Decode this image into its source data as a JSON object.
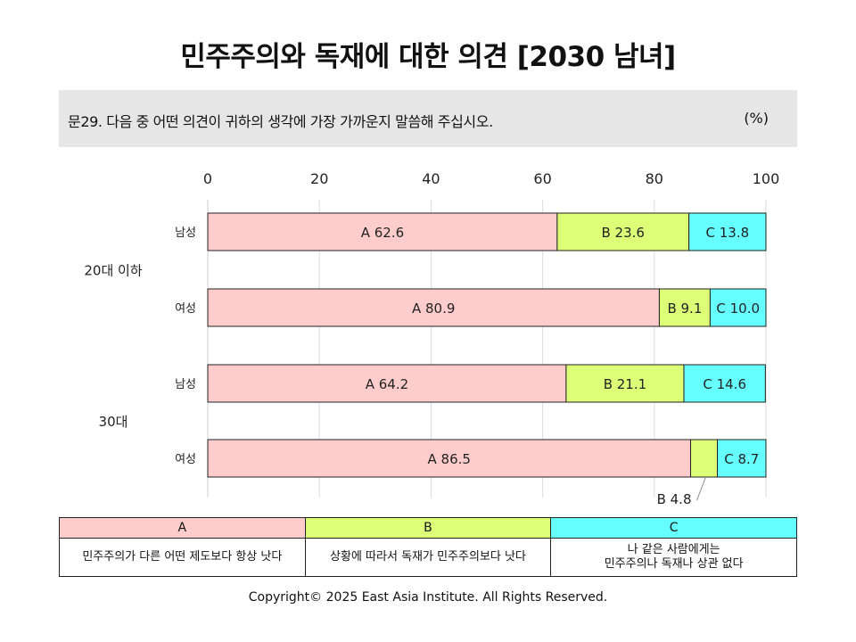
{
  "title": "민주주의와 독재에 대한 의견 [2030 남녀]",
  "question": {
    "text": "문29. 다음 중 어떤 의견이 귀하의 생각에 가장 가까운지 말씀해 주십시오.",
    "unit": "(%)"
  },
  "chart_data": {
    "type": "bar",
    "orientation": "horizontal",
    "stacked": true,
    "x_ticks": [
      "0",
      "20",
      "40",
      "60",
      "80",
      "100"
    ],
    "xlim": [
      0,
      100
    ],
    "grid": true,
    "groups": [
      {
        "label": "20대 이하",
        "rows": [
          {
            "label": "남성",
            "values": [
              62.6,
              23.6,
              13.8
            ],
            "labels": [
              "A 62.6",
              "B 23.6",
              "C 13.8"
            ]
          },
          {
            "label": "여성",
            "values": [
              80.9,
              9.1,
              10.0
            ],
            "labels": [
              "A 80.9",
              "B 9.1",
              "C 10.0"
            ]
          }
        ]
      },
      {
        "label": "30대",
        "rows": [
          {
            "label": "남성",
            "values": [
              64.2,
              21.1,
              14.6
            ],
            "labels": [
              "A 64.2",
              "B 21.1",
              "C 14.6"
            ]
          },
          {
            "label": "여성",
            "values": [
              86.5,
              4.8,
              8.7
            ],
            "labels": [
              "A 86.5",
              "",
              "C 8.7"
            ],
            "callout": "B 4.8"
          }
        ]
      }
    ],
    "series": [
      {
        "name": "A",
        "color": "#ffcccc"
      },
      {
        "name": "B",
        "color": "#ddff77"
      },
      {
        "name": "C",
        "color": "#66ffff"
      }
    ]
  },
  "legend": [
    {
      "key": "A",
      "color": "#ffcccc",
      "description": "민주주의가 다른 어떤 제도보다 항상 낫다"
    },
    {
      "key": "B",
      "color": "#ddff77",
      "description": "상황에 따라서 독재가 민주주의보다 낫다"
    },
    {
      "key": "C",
      "color": "#66ffff",
      "description": "나 같은 사람에게는\n민주주의나 독재나 상관 없다"
    }
  ],
  "copyright": "Copyright© 2025 East Asia Institute. All Rights Reserved."
}
